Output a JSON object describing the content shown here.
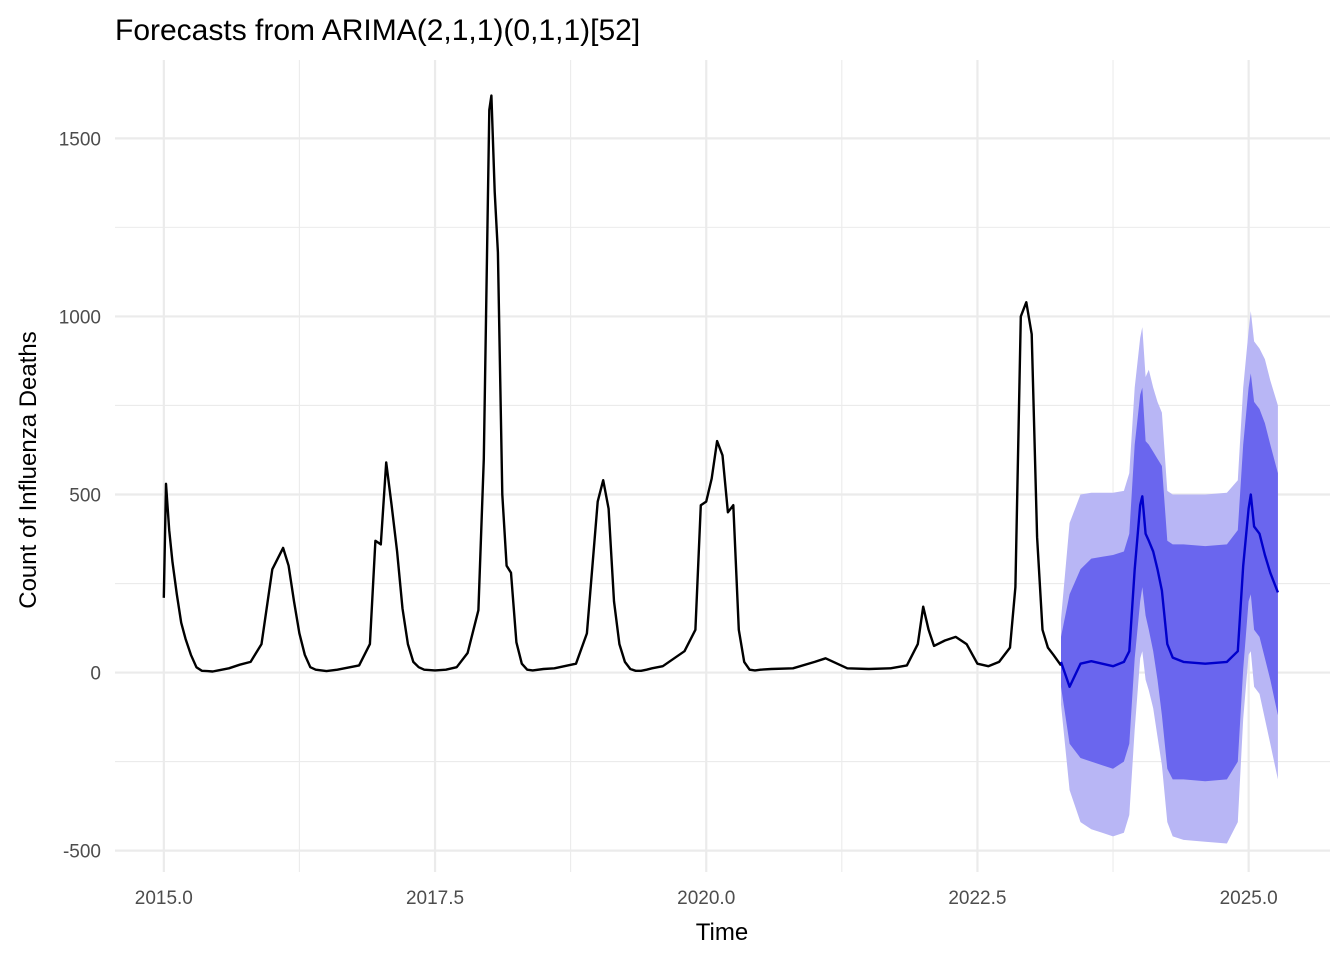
{
  "chart_data": {
    "type": "line",
    "title": "Forecasts from ARIMA(2,1,1)(0,1,1)[52]",
    "xlabel": "Time",
    "ylabel": "Count of Influenza Deaths",
    "xlim": [
      2014.55,
      2025.75
    ],
    "ylim": [
      -560,
      1720
    ],
    "x_ticks": [
      2015.0,
      2017.5,
      2020.0,
      2022.5,
      2025.0
    ],
    "x_tick_labels": [
      "2015.0",
      "2017.5",
      "2020.0",
      "2022.5",
      "2025.0"
    ],
    "y_ticks": [
      -500,
      0,
      500,
      1000,
      1500
    ],
    "y_tick_labels": [
      "-500",
      "0",
      "500",
      "1000",
      "1500"
    ],
    "grid": true,
    "legend": "none",
    "colors": {
      "observed": "#000000",
      "forecast": "#0000cc",
      "band_80": "#6a66ee",
      "band_95": "#b8b6f5",
      "grid": "#ebebeb"
    },
    "observed": {
      "x": [
        2015.0,
        2015.02,
        2015.05,
        2015.08,
        2015.12,
        2015.16,
        2015.2,
        2015.25,
        2015.3,
        2015.35,
        2015.4,
        2015.45,
        2015.5,
        2015.6,
        2015.7,
        2015.8,
        2015.9,
        2016.0,
        2016.1,
        2016.15,
        2016.2,
        2016.25,
        2016.3,
        2016.35,
        2016.4,
        2016.5,
        2016.6,
        2016.8,
        2016.9,
        2016.95,
        2017.0,
        2017.05,
        2017.1,
        2017.15,
        2017.2,
        2017.25,
        2017.3,
        2017.35,
        2017.4,
        2017.5,
        2017.6,
        2017.7,
        2017.8,
        2017.9,
        2017.95,
        2018.0,
        2018.02,
        2018.05,
        2018.08,
        2018.12,
        2018.16,
        2018.2,
        2018.25,
        2018.3,
        2018.35,
        2018.4,
        2018.5,
        2018.6,
        2018.8,
        2018.9,
        2019.0,
        2019.05,
        2019.1,
        2019.15,
        2019.2,
        2019.25,
        2019.3,
        2019.35,
        2019.4,
        2019.45,
        2019.5,
        2019.6,
        2019.8,
        2019.9,
        2019.95,
        2020.0,
        2020.05,
        2020.1,
        2020.15,
        2020.2,
        2020.25,
        2020.3,
        2020.35,
        2020.4,
        2020.45,
        2020.5,
        2020.6,
        2020.8,
        2021.0,
        2021.1,
        2021.3,
        2021.5,
        2021.7,
        2021.85,
        2021.95,
        2022.0,
        2022.05,
        2022.1,
        2022.2,
        2022.3,
        2022.4,
        2022.5,
        2022.6,
        2022.7,
        2022.8,
        2022.85,
        2022.9,
        2022.95,
        2023.0,
        2023.05,
        2023.1,
        2023.15,
        2023.2,
        2023.27
      ],
      "y": [
        210,
        530,
        400,
        310,
        220,
        140,
        95,
        50,
        15,
        5,
        4,
        3,
        6,
        12,
        22,
        30,
        80,
        290,
        350,
        300,
        200,
        110,
        50,
        15,
        8,
        4,
        8,
        20,
        80,
        370,
        360,
        590,
        470,
        340,
        180,
        80,
        30,
        15,
        8,
        6,
        8,
        15,
        55,
        175,
        600,
        1580,
        1620,
        1350,
        1180,
        500,
        300,
        280,
        85,
        25,
        8,
        6,
        10,
        12,
        25,
        110,
        480,
        540,
        460,
        200,
        80,
        30,
        10,
        5,
        5,
        8,
        12,
        18,
        60,
        120,
        470,
        480,
        545,
        650,
        610,
        450,
        470,
        120,
        30,
        8,
        6,
        8,
        10,
        12,
        30,
        40,
        12,
        10,
        12,
        20,
        80,
        185,
        120,
        75,
        90,
        100,
        80,
        25,
        18,
        30,
        70,
        240,
        1000,
        1040,
        950,
        380,
        120,
        70,
        50,
        20
      ]
    },
    "forecast": {
      "x": [
        2023.27,
        2023.35,
        2023.45,
        2023.55,
        2023.65,
        2023.75,
        2023.85,
        2023.9,
        2023.95,
        2024.0,
        2024.02,
        2024.05,
        2024.08,
        2024.12,
        2024.16,
        2024.2,
        2024.25,
        2024.3,
        2024.4,
        2024.6,
        2024.8,
        2024.9,
        2024.95,
        2025.0,
        2025.02,
        2025.05,
        2025.1,
        2025.15,
        2025.2,
        2025.27
      ],
      "mean": [
        30,
        -40,
        25,
        32,
        25,
        18,
        30,
        60,
        290,
        470,
        495,
        390,
        370,
        340,
        290,
        230,
        80,
        42,
        30,
        25,
        30,
        60,
        300,
        460,
        500,
        410,
        390,
        330,
        280,
        225
      ],
      "lo80": [
        -40,
        -200,
        -240,
        -250,
        -260,
        -270,
        -250,
        -200,
        40,
        200,
        240,
        160,
        120,
        60,
        -20,
        -120,
        -270,
        -300,
        -300,
        -305,
        -300,
        -250,
        10,
        200,
        220,
        120,
        100,
        40,
        -20,
        -120
      ],
      "hi80": [
        100,
        220,
        290,
        320,
        325,
        330,
        340,
        390,
        640,
        780,
        800,
        650,
        640,
        620,
        600,
        580,
        370,
        360,
        360,
        355,
        360,
        400,
        640,
        800,
        840,
        760,
        740,
        700,
        640,
        560
      ],
      "lo95": [
        -90,
        -330,
        -420,
        -440,
        -450,
        -460,
        -450,
        -400,
        -160,
        40,
        60,
        -20,
        -50,
        -100,
        -180,
        -260,
        -420,
        -460,
        -470,
        -475,
        -480,
        -420,
        -130,
        50,
        60,
        -40,
        -60,
        -130,
        -200,
        -300
      ],
      "hi95": [
        150,
        420,
        500,
        505,
        505,
        505,
        510,
        560,
        800,
        940,
        970,
        830,
        850,
        800,
        760,
        730,
        510,
        500,
        500,
        500,
        505,
        540,
        800,
        960,
        1015,
        930,
        910,
        880,
        820,
        750
      ]
    }
  }
}
